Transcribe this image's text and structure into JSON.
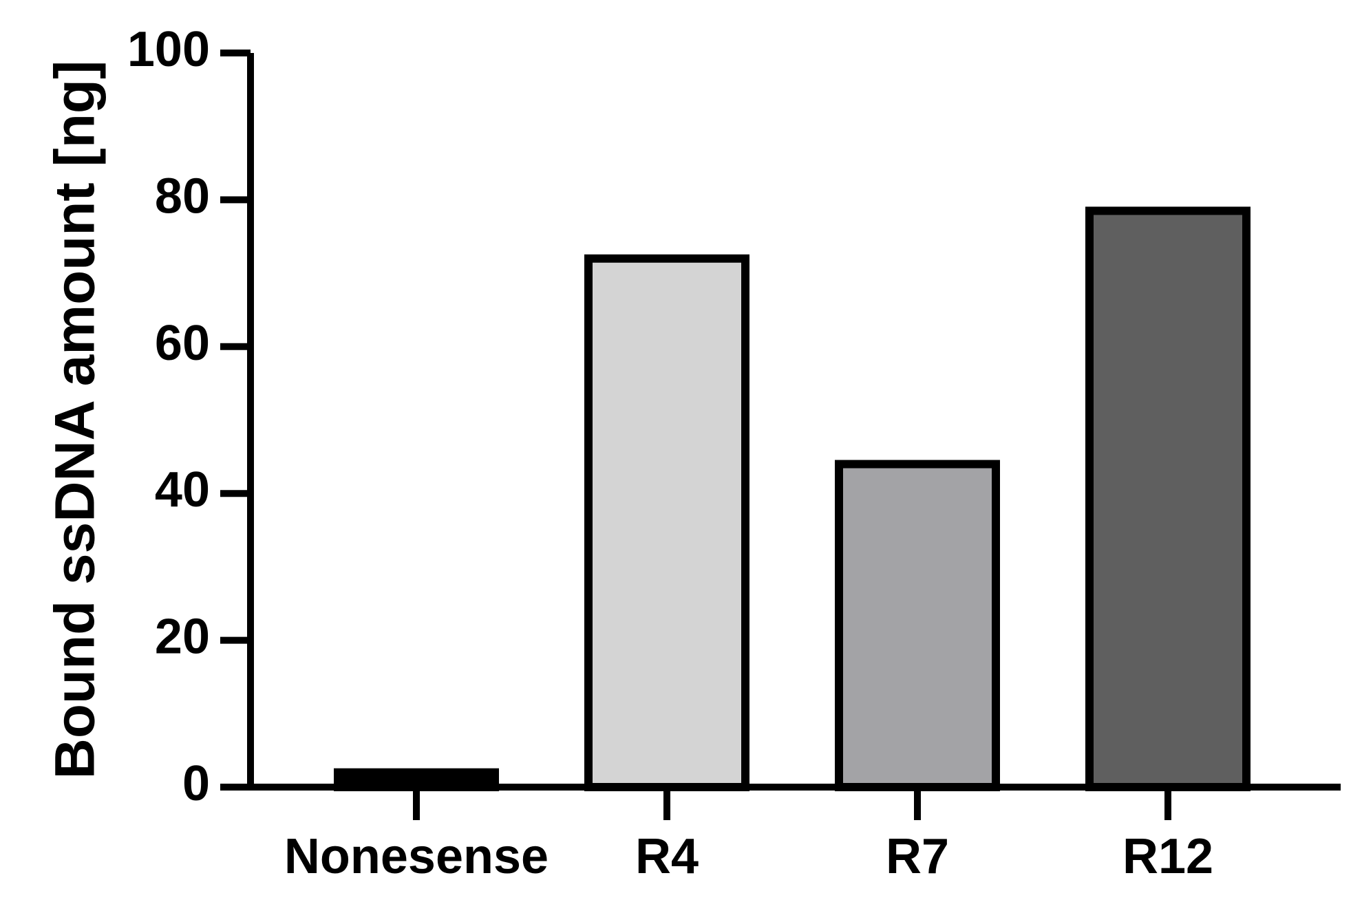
{
  "chart_data": {
    "type": "bar",
    "title": "",
    "xlabel": "",
    "ylabel": "Bound ssDNA amount [ng]",
    "categories": [
      "Nonesense",
      "R4",
      "R7",
      "R12"
    ],
    "values": [
      2,
      72,
      44,
      78.5
    ],
    "colors": [
      "#000000",
      "#d4d4d4",
      "#a3a3a6",
      "#5f5f5f"
    ],
    "ylim": [
      0,
      100
    ],
    "yticks": [
      0,
      20,
      40,
      60,
      80,
      100
    ],
    "grid": false,
    "legend": false
  }
}
